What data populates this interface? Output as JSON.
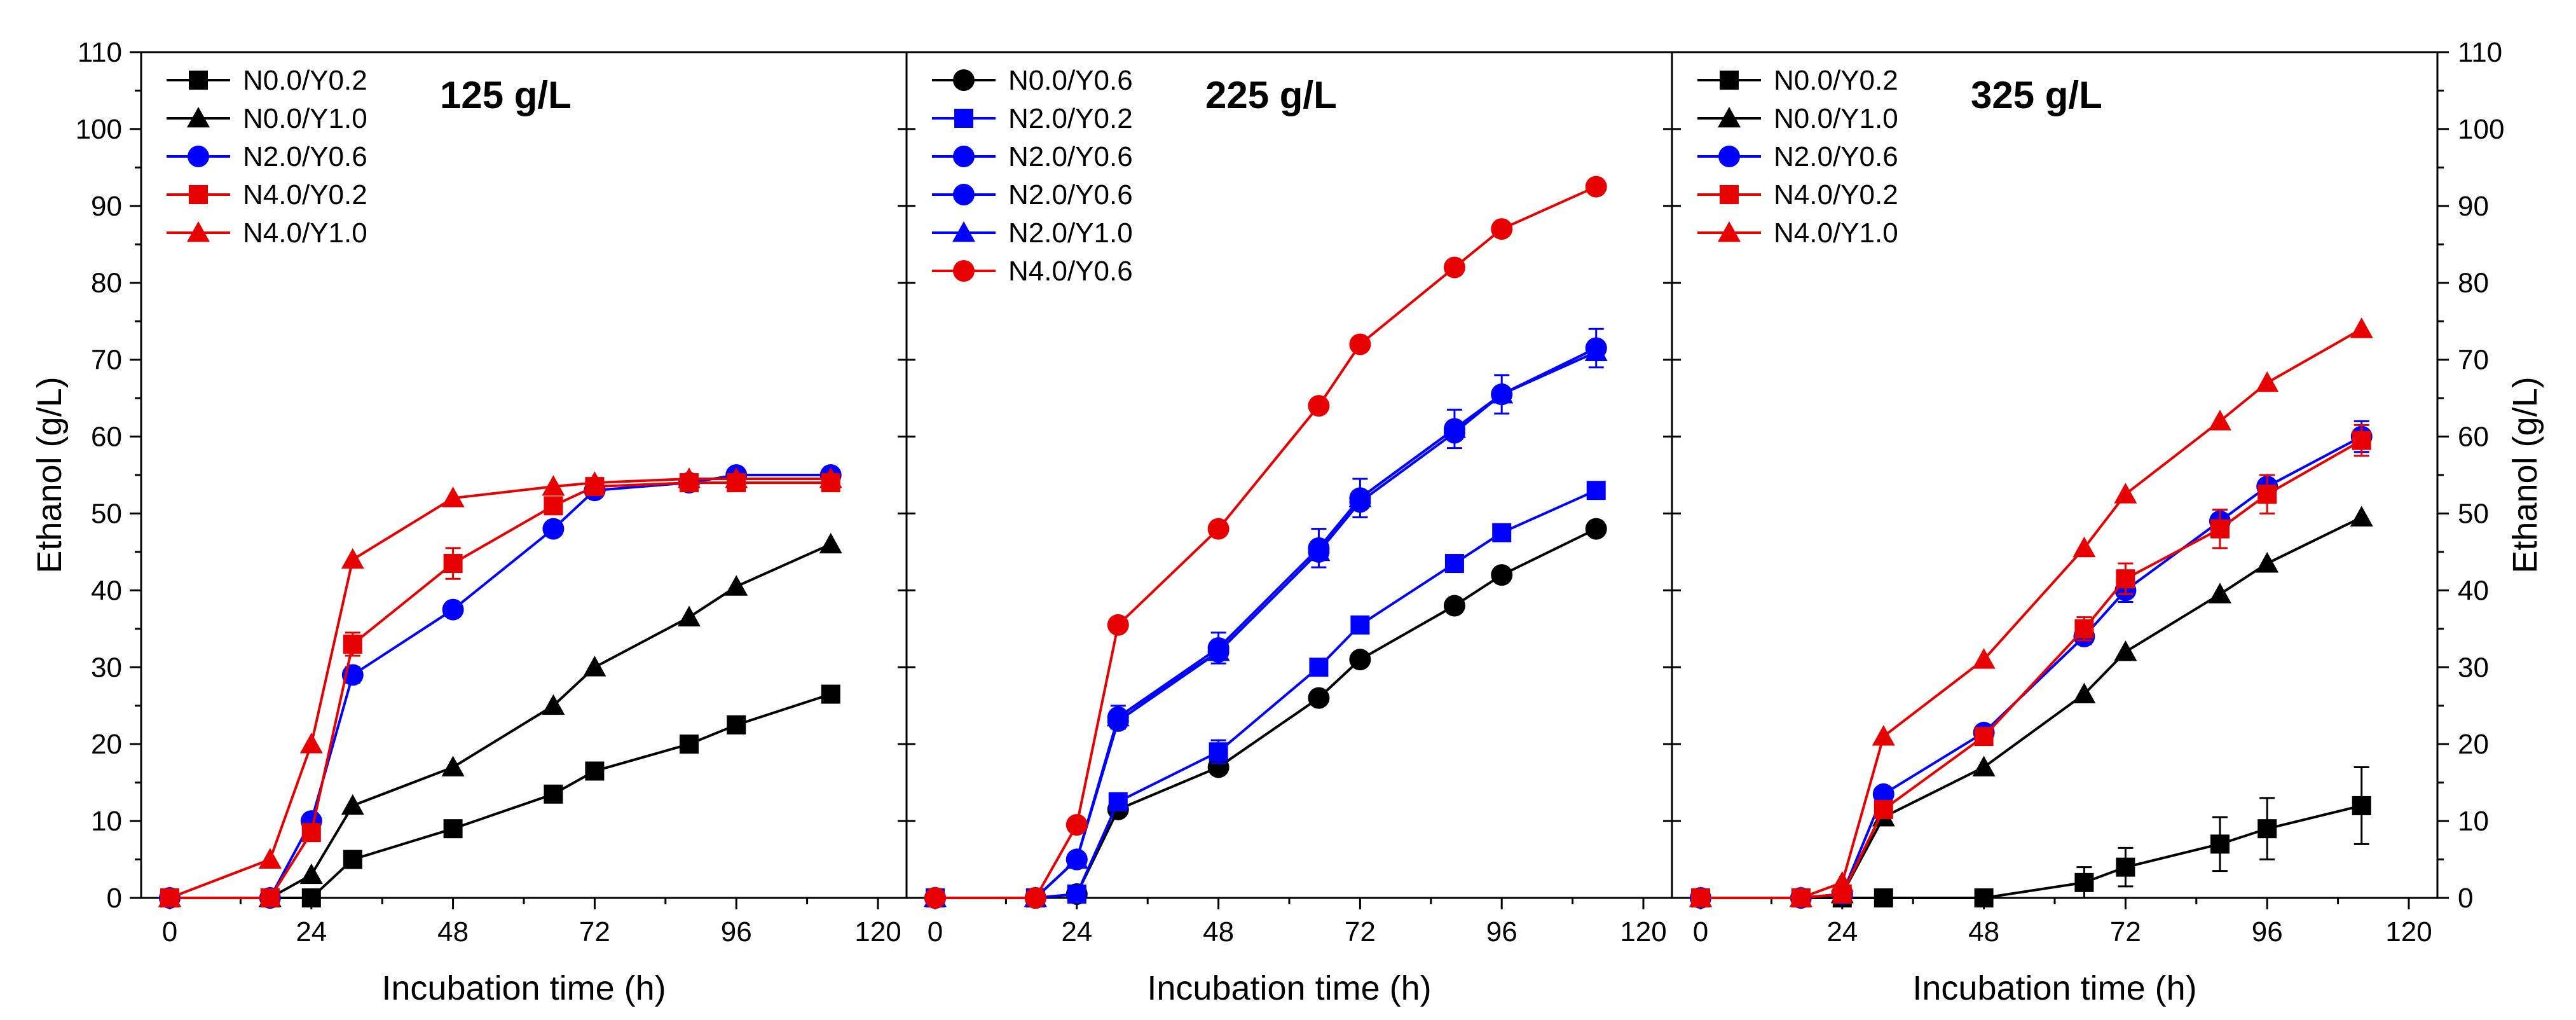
{
  "chart_data": {
    "type": "line",
    "xlabel": "Incubation time (h)",
    "ylabel": "Ethanol (g/L)",
    "xlim": [
      0,
      120
    ],
    "ylim": [
      0,
      110
    ],
    "x_ticks": [
      0,
      24,
      48,
      72,
      96,
      120
    ],
    "y_ticks": [
      0,
      10,
      20,
      30,
      40,
      50,
      60,
      70,
      80,
      90,
      100,
      110
    ],
    "grid": false,
    "legend_position": "top-left",
    "panels": [
      {
        "title": "125 g/L",
        "series": [
          {
            "name": "N0.0/Y0.2",
            "color": "#000000",
            "marker": "square",
            "x": [
              0,
              17,
              24,
              31,
              48,
              65,
              72,
              88,
              96,
              112
            ],
            "y": [
              0,
              0,
              0,
              5,
              9,
              13.5,
              16.5,
              20,
              22.5,
              26.5
            ],
            "err": [
              0,
              0,
              0,
              0,
              0,
              0,
              0,
              0,
              0,
              0
            ]
          },
          {
            "name": "N0.0/Y1.0",
            "color": "#000000",
            "marker": "triangle",
            "x": [
              0,
              17,
              24,
              31,
              48,
              65,
              72,
              88,
              96,
              112
            ],
            "y": [
              0,
              0,
              3,
              12,
              17,
              25,
              30,
              36.5,
              40.5,
              46
            ],
            "err": [
              0,
              0,
              0,
              0,
              0,
              0,
              0,
              0,
              0,
              0
            ]
          },
          {
            "name": "N2.0/Y0.6",
            "color": "#0000ff",
            "marker": "circle",
            "x": [
              0,
              17,
              24,
              31,
              48,
              65,
              72,
              88,
              96,
              112
            ],
            "y": [
              0,
              0,
              10,
              29,
              37.5,
              48,
              53,
              54,
              55,
              55
            ],
            "err": [
              0,
              0,
              0,
              1,
              0.5,
              0,
              0,
              0,
              0,
              0
            ]
          },
          {
            "name": "N4.0/Y0.2",
            "color": "#e60000",
            "marker": "square",
            "x": [
              0,
              17,
              24,
              31,
              48,
              65,
              72,
              88,
              96,
              112
            ],
            "y": [
              0,
              0,
              8.5,
              33,
              43.5,
              51,
              53.5,
              54,
              54,
              54
            ],
            "err": [
              0,
              0,
              0,
              1.5,
              2,
              0,
              0,
              0,
              0,
              0
            ]
          },
          {
            "name": "N4.0/Y1.0",
            "color": "#e60000",
            "marker": "triangle",
            "x": [
              0,
              17,
              24,
              31,
              48,
              65,
              72,
              88,
              96,
              112
            ],
            "y": [
              0,
              5,
              20,
              44,
              52,
              53.5,
              54,
              54.5,
              54.5,
              54.5
            ],
            "err": [
              0,
              0,
              0,
              0,
              0,
              0,
              0,
              0,
              0,
              0
            ]
          }
        ]
      },
      {
        "title": "225 g/L",
        "series": [
          {
            "name": "N0.0/Y0.6",
            "color": "#000000",
            "marker": "circle",
            "x": [
              0,
              17,
              24,
              31,
              48,
              65,
              72,
              88,
              96,
              112
            ],
            "y": [
              0,
              0,
              0.5,
              11.5,
              17,
              26,
              31,
              38,
              42,
              48
            ],
            "err": [
              0,
              0,
              0,
              0,
              0,
              0,
              0,
              0,
              0,
              0
            ]
          },
          {
            "name": "N2.0/Y0.2",
            "color": "#0000ff",
            "marker": "square",
            "x": [
              0,
              17,
              24,
              31,
              48,
              65,
              72,
              88,
              96,
              112
            ],
            "y": [
              0,
              0,
              0.5,
              12.5,
              19,
              30,
              35.5,
              43.5,
              47.5,
              53
            ],
            "err": [
              0,
              0,
              0,
              0,
              1.5,
              1,
              1,
              0,
              0,
              0
            ]
          },
          {
            "name": "N2.0/Y0.6",
            "color": "#0000ff",
            "marker": "circle",
            "x": [
              0,
              17,
              24,
              31,
              48,
              65,
              72,
              88,
              96,
              112
            ],
            "y": [
              0,
              0,
              5,
              23.5,
              32.5,
              45.5,
              52,
              61,
              65.5,
              71.5
            ],
            "err": [
              0,
              0,
              0,
              1.5,
              2,
              2.5,
              2.5,
              2.5,
              2.5,
              2.5
            ]
          },
          {
            "name": "N2.0/Y0.6",
            "color": "#0000ff",
            "marker": "circle",
            "x": [
              0,
              17,
              24,
              31,
              48,
              65,
              72,
              88,
              96,
              112
            ],
            "y": [
              0,
              0,
              5,
              23,
              32,
              45,
              51.5,
              60.5,
              65.5,
              71.5
            ],
            "err": [
              0,
              0,
              0,
              0,
              0,
              0,
              0,
              0,
              0,
              0
            ]
          },
          {
            "name": "N2.0/Y1.0",
            "color": "#0000ff",
            "marker": "triangle",
            "x": [
              0,
              17,
              24,
              31,
              48,
              65,
              72,
              88,
              96,
              112
            ],
            "y": [
              0,
              0,
              5,
              23.5,
              32,
              45,
              52,
              61,
              65.5,
              71
            ],
            "err": [
              0,
              0,
              0,
              0,
              0,
              0,
              0,
              0,
              0,
              0
            ]
          },
          {
            "name": "N4.0/Y0.6",
            "color": "#e60000",
            "marker": "circle",
            "x": [
              0,
              17,
              24,
              31,
              48,
              65,
              72,
              88,
              96,
              112
            ],
            "y": [
              0,
              0,
              9.5,
              35.5,
              48,
              64,
              72,
              82,
              87,
              92.5
            ],
            "err": [
              0,
              0,
              0,
              0,
              0,
              0,
              0,
              0,
              0,
              0
            ]
          }
        ]
      },
      {
        "title": "325 g/L",
        "series": [
          {
            "name": "N0.0/Y0.2",
            "color": "#000000",
            "marker": "square",
            "x": [
              0,
              17,
              24,
              31,
              48,
              65,
              72,
              88,
              96,
              112
            ],
            "y": [
              0,
              0,
              0,
              0,
              0,
              2,
              4,
              7,
              9,
              12
            ],
            "err": [
              0,
              0,
              0,
              0,
              0,
              2,
              2.5,
              3.5,
              4,
              5
            ]
          },
          {
            "name": "N0.0/Y1.0",
            "color": "#000000",
            "marker": "triangle",
            "x": [
              0,
              17,
              24,
              31,
              48,
              65,
              72,
              88,
              96,
              112
            ],
            "y": [
              0,
              0,
              0.5,
              10.5,
              17,
              26.5,
              32,
              39.5,
              43.5,
              49.5
            ],
            "err": [
              0,
              0,
              0,
              0,
              0,
              0,
              0,
              0,
              0,
              0
            ]
          },
          {
            "name": "N2.0/Y0.6",
            "color": "#0000ff",
            "marker": "circle",
            "x": [
              0,
              17,
              24,
              31,
              48,
              65,
              72,
              88,
              96,
              112
            ],
            "y": [
              0,
              0,
              0.5,
              13.5,
              21.5,
              34,
              40,
              49,
              53.5,
              60
            ],
            "err": [
              0,
              0,
              0,
              0,
              0,
              1,
              1.5,
              1.5,
              1.5,
              2
            ]
          },
          {
            "name": "N4.0/Y0.2",
            "color": "#e60000",
            "marker": "square",
            "x": [
              0,
              17,
              24,
              31,
              48,
              65,
              72,
              88,
              96,
              112
            ],
            "y": [
              0,
              0,
              0.5,
              11.5,
              21,
              35,
              41.5,
              48,
              52.5,
              59.5
            ],
            "err": [
              0,
              0,
              0,
              0,
              0,
              1.5,
              2,
              2.5,
              2.5,
              2
            ]
          },
          {
            "name": "N4.0/Y1.0",
            "color": "#e60000",
            "marker": "triangle",
            "x": [
              0,
              17,
              24,
              31,
              48,
              65,
              72,
              88,
              96,
              112
            ],
            "y": [
              0,
              0,
              2,
              21,
              31,
              45.5,
              52.5,
              62,
              67,
              74
            ],
            "err": [
              0,
              0,
              0,
              0,
              0,
              0,
              0,
              0,
              0,
              0
            ]
          }
        ]
      }
    ]
  }
}
